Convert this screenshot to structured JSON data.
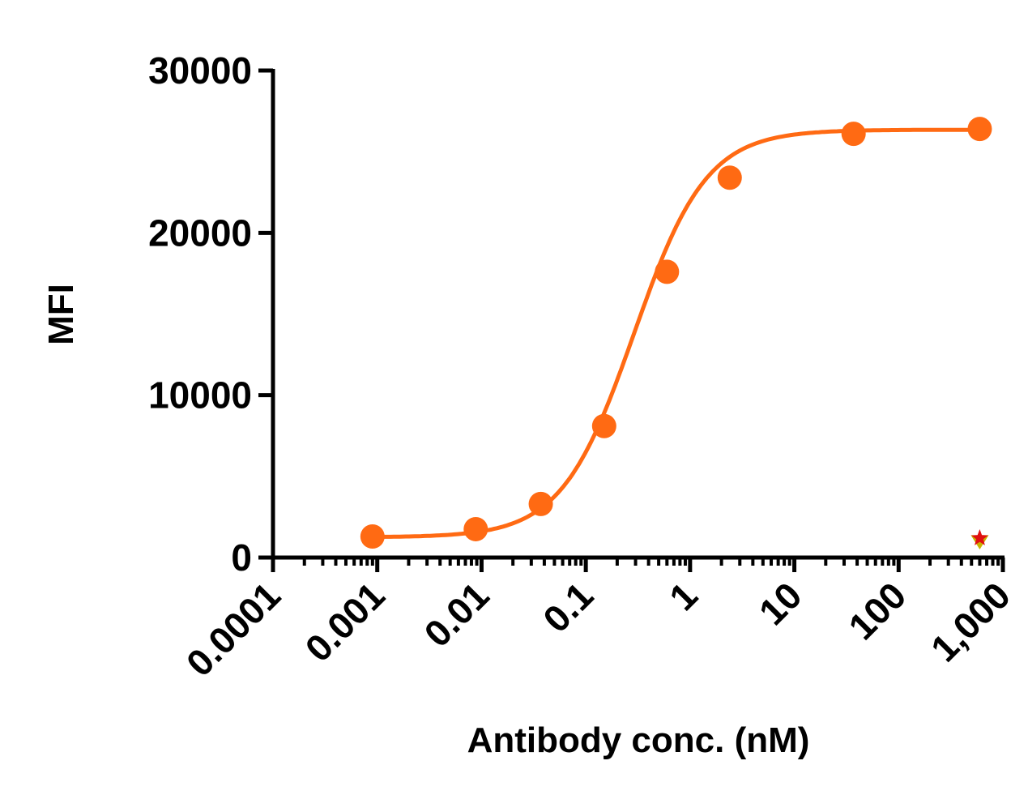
{
  "chart_data": {
    "type": "scatter",
    "title": "",
    "xlabel": "Antibody conc. (nM)",
    "ylabel": "MFI",
    "x_scale": "log",
    "xlim": [
      0.0001,
      1000
    ],
    "ylim": [
      0,
      30000
    ],
    "x_tick_labels": [
      "0.0001",
      "0.001",
      "0.01",
      "0.1",
      "1",
      "10",
      "100",
      "1,000"
    ],
    "y_tick_labels": [
      "0",
      "10000",
      "20000",
      "30000"
    ],
    "y_ticks": [
      0,
      10000,
      20000,
      30000
    ],
    "grid": false,
    "legend": "none",
    "series": [
      {
        "color": "#ff6a13",
        "marker": "circle",
        "fit": "sigmoidal",
        "x": [
          0.0009,
          0.0088,
          0.037,
          0.15,
          0.6,
          2.4,
          37,
          600
        ],
        "y": [
          1300,
          1750,
          3300,
          8100,
          17600,
          23400,
          26100,
          26400
        ]
      },
      {
        "color": "#c8b400",
        "marker": "triangle-down",
        "x": [
          600
        ],
        "y": [
          1050
        ]
      },
      {
        "color": "#e01010",
        "marker": "star",
        "x": [
          600
        ],
        "y": [
          1200
        ]
      }
    ]
  }
}
